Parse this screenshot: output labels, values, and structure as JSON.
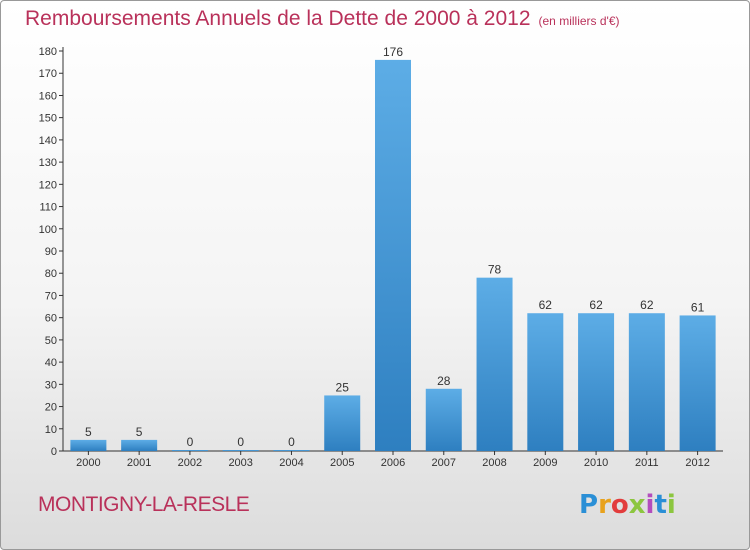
{
  "header": {
    "title": "Remboursements Annuels de la Dette de 2000 à 2012",
    "unit": "(en milliers d'€)"
  },
  "footer": {
    "commune": "MONTIGNY-LA-RESLE",
    "logo_letters": [
      "P",
      "r",
      "o",
      "x",
      "i",
      "t",
      "i"
    ]
  },
  "colors": {
    "title": "#b9315a",
    "bar_top": "#5dade6",
    "bar_bottom": "#2e7fc0"
  },
  "chart_data": {
    "type": "bar",
    "categories": [
      "2000",
      "2001",
      "2002",
      "2003",
      "2004",
      "2005",
      "2006",
      "2007",
      "2008",
      "2009",
      "2010",
      "2011",
      "2012"
    ],
    "values": [
      5,
      5,
      0,
      0,
      0,
      25,
      176,
      28,
      78,
      62,
      62,
      62,
      61
    ],
    "value_labels": [
      "5",
      "5",
      "0",
      "0",
      "0",
      "25",
      "176",
      "28",
      "78",
      "62",
      "62",
      "62",
      "61"
    ],
    "yticks": [
      "0",
      "10",
      "20",
      "30",
      "40",
      "50",
      "60",
      "70",
      "80",
      "90",
      "100",
      "110",
      "120",
      "130",
      "140",
      "150",
      "160",
      "170",
      "180"
    ],
    "ylim": [
      0,
      180
    ],
    "grid": false,
    "legend": "none"
  }
}
